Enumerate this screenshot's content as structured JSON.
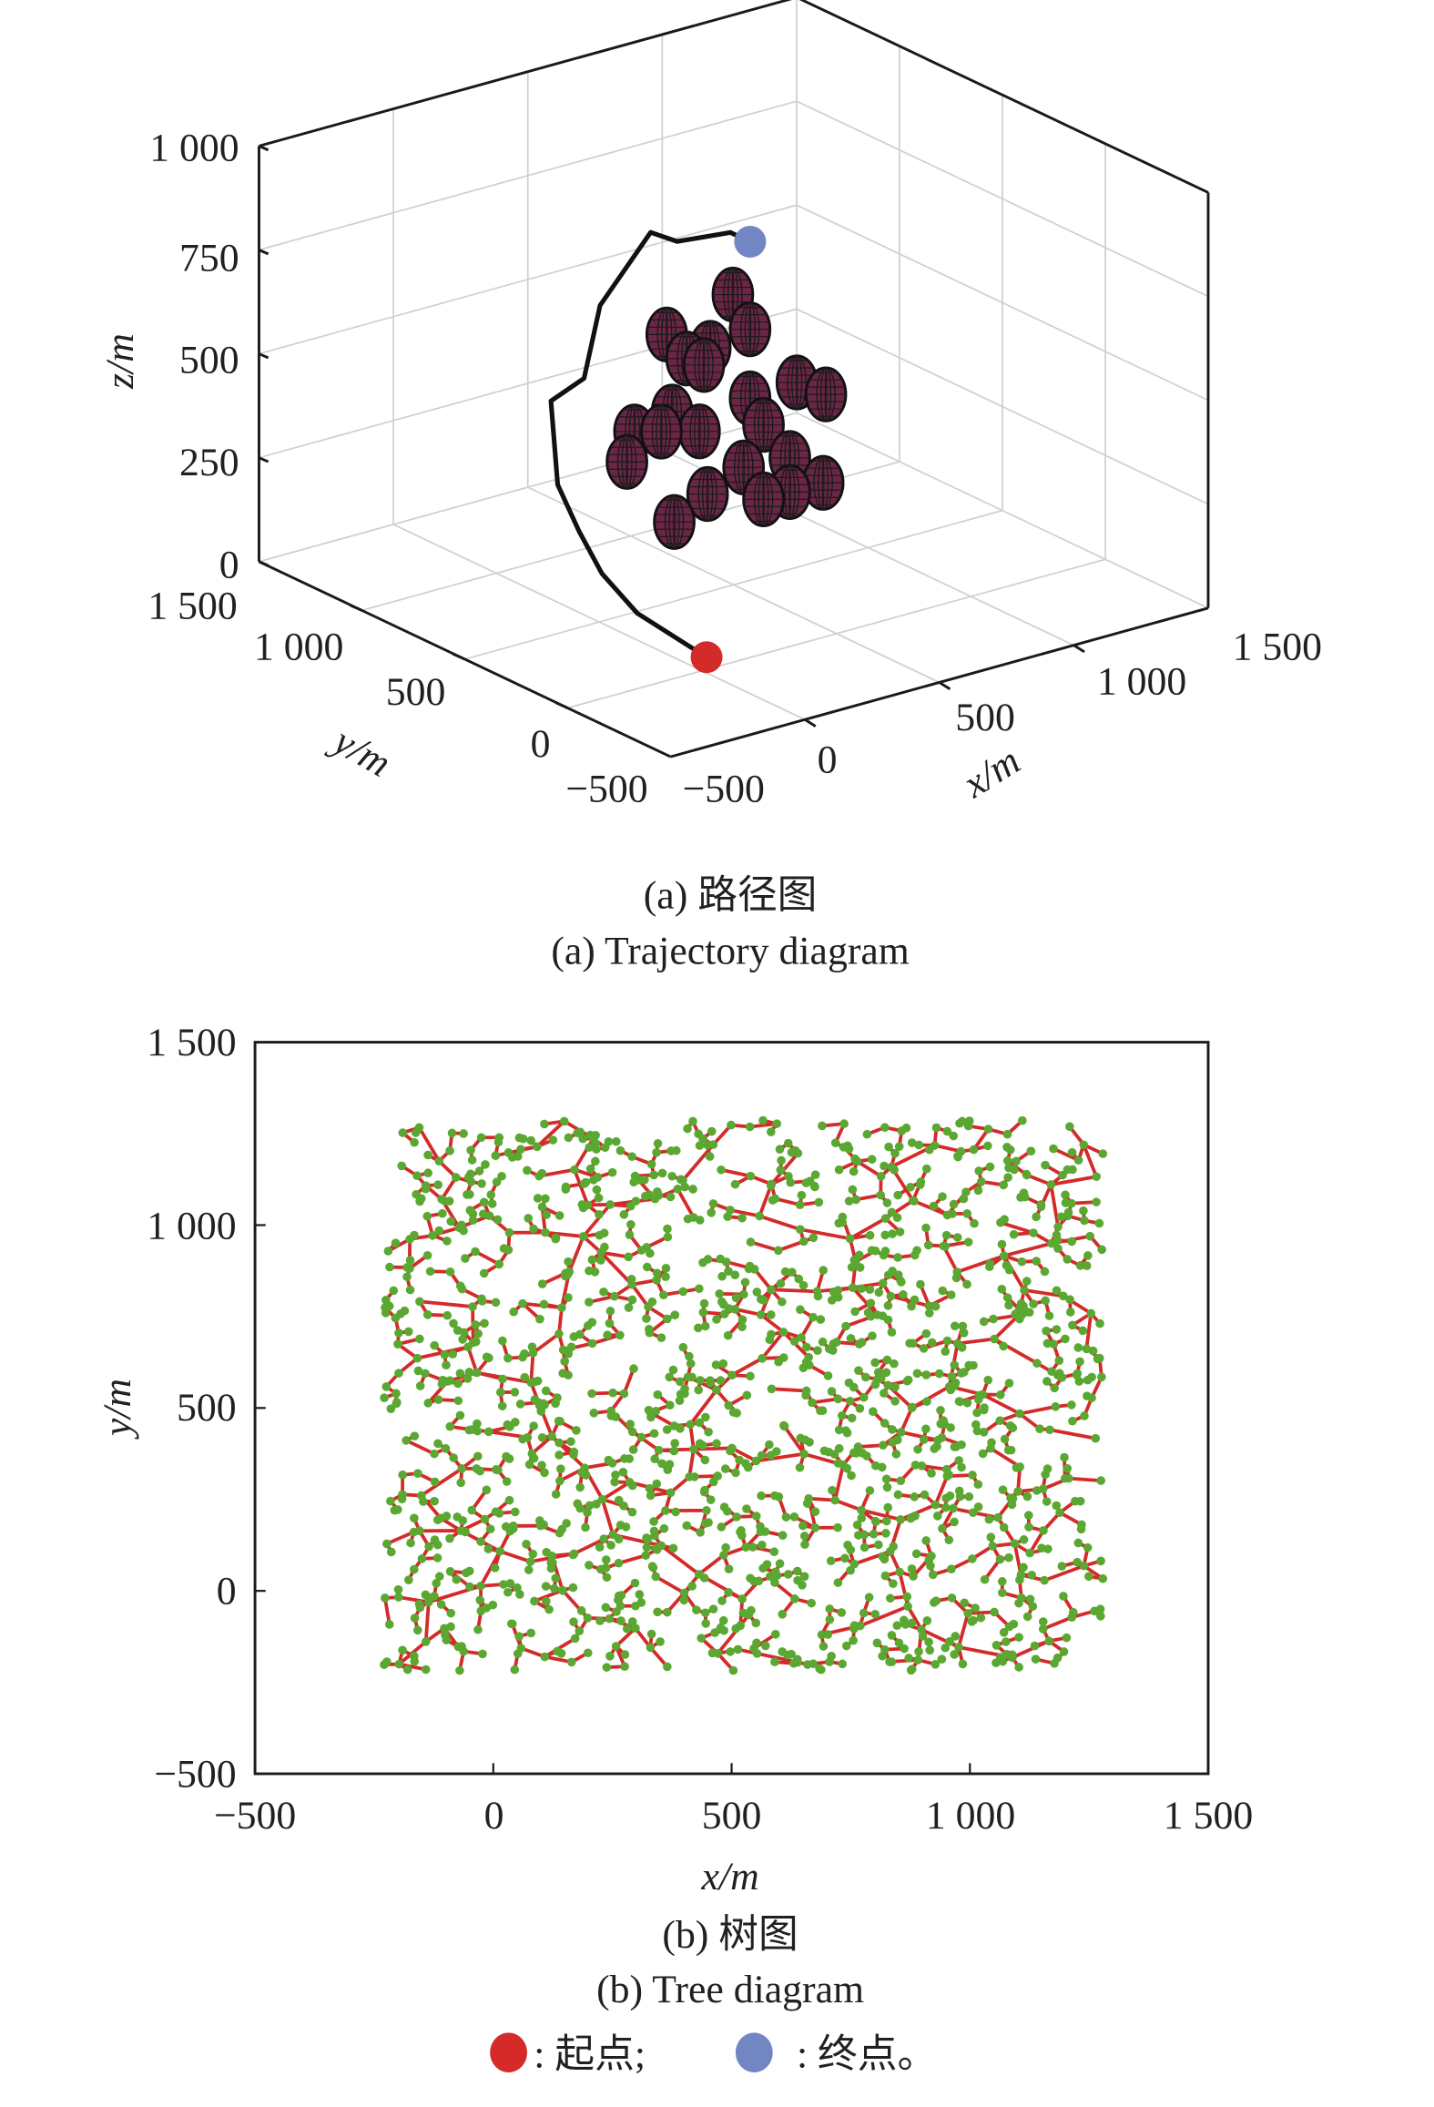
{
  "chart_data": [
    {
      "type": "scatter3d",
      "title": "(a) 路径图",
      "subtitle": "(a) Trajectory diagram",
      "xlabel": "x/m",
      "ylabel": "y/m",
      "zlabel": "z/m",
      "xlim": [
        -500,
        1500
      ],
      "ylim": [
        -500,
        1500
      ],
      "zlim": [
        0,
        1000
      ],
      "xticks": [
        "−500",
        "0",
        "500",
        "1 000",
        "1 500"
      ],
      "yticks": [
        "−500",
        "0",
        "500",
        "1 000",
        "1 500"
      ],
      "zticks": [
        "0",
        "250",
        "500",
        "750",
        "1 000"
      ],
      "grid": true,
      "path": [
        [
          78,
          80,
          0
        ],
        [
          30,
          354,
          50
        ],
        [
          82,
          594,
          80
        ],
        [
          156,
          802,
          120
        ],
        [
          213,
          980,
          180
        ],
        [
          364,
          1210,
          300
        ],
        [
          472,
          1190,
          340
        ],
        [
          644,
          1337,
          450
        ],
        [
          816,
          1316,
          600
        ],
        [
          792,
          1156,
          620
        ],
        [
          900,
          1038,
          650
        ],
        [
          880,
          916,
          660
        ]
      ],
      "start": [
        78,
        80,
        0
      ],
      "goal": [
        880,
        916,
        660
      ],
      "obstacles": [
        [
          880,
          1000,
          513
        ],
        [
          944,
          1000,
          418
        ],
        [
          634,
          1000,
          461
        ],
        [
          708,
          1000,
          390
        ],
        [
          796,
          1000,
          400
        ],
        [
          772,
          1000,
          363
        ],
        [
          1118,
          1000,
          259
        ],
        [
          1226,
          1000,
          211
        ],
        [
          944,
          1000,
          252
        ],
        [
          994,
          1000,
          179
        ],
        [
          654,
          1000,
          272
        ],
        [
          756,
          1000,
          206
        ],
        [
          514,
          1000,
          249
        ],
        [
          486,
          1000,
          181
        ],
        [
          920,
          1000,
          90
        ],
        [
          1092,
          1000,
          82
        ],
        [
          786,
          1000,
          50
        ],
        [
          662,
          1000,
          5
        ],
        [
          994,
          1000,
          0
        ],
        [
          1092,
          1000,
          0
        ],
        [
          1216,
          1000,
          0
        ],
        [
          614,
          1000,
          231
        ]
      ],
      "colors": {
        "path": "#111111",
        "start": "#d42a2a",
        "goal": "#7386c4",
        "obstacle": "#6b2647",
        "obstacle_mesh": "#1a1a1a"
      }
    },
    {
      "type": "tree",
      "title": "(b) 树图",
      "subtitle": "(b) Tree diagram",
      "xlabel": "x/m",
      "ylabel": "y/m",
      "xlim": [
        -500,
        1500
      ],
      "ylim": [
        -500,
        1500
      ],
      "xticks": [
        "−500",
        "0",
        "500",
        "1 000",
        "1 500"
      ],
      "yticks": [
        "−500",
        "0",
        "500",
        "1 000",
        "1 500"
      ],
      "grid": false,
      "sample_region": {
        "x": [
          -230,
          1280
        ],
        "y": [
          -220,
          1290
        ]
      },
      "node_count": 1500,
      "step": 85,
      "colors": {
        "edge": "#d42a2a",
        "node": "#5aa832"
      }
    }
  ],
  "legend": {
    "start_label": ": 起点;",
    "goal_label": ": 终点。",
    "start_color": "#d42a2a",
    "goal_color": "#7386c4"
  }
}
